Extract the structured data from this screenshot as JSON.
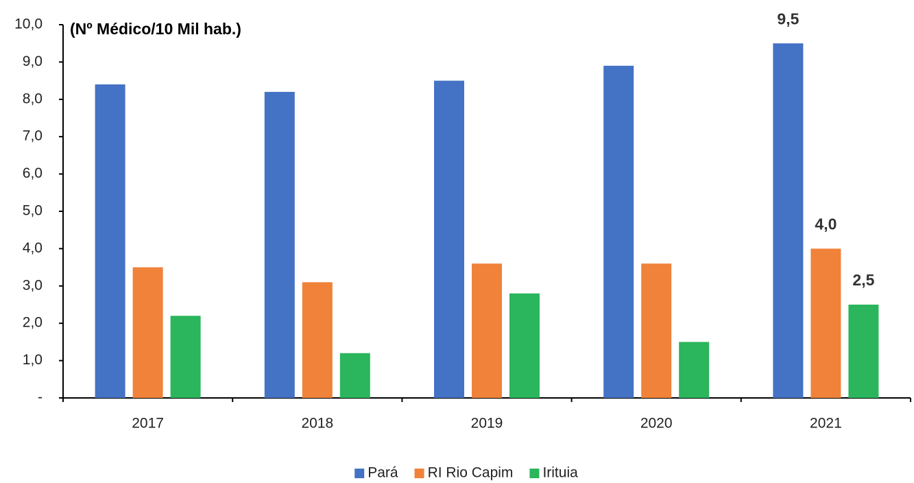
{
  "chart_data": {
    "type": "bar",
    "y_label": "(Nº Médico/10 Mil hab.)",
    "categories": [
      "2017",
      "2018",
      "2019",
      "2020",
      "2021"
    ],
    "series": [
      {
        "name": "Pará",
        "color": "#4472c4",
        "values": [
          8.4,
          8.2,
          8.5,
          8.9,
          9.5
        ],
        "value_labels": [
          null,
          null,
          null,
          null,
          "9,5"
        ]
      },
      {
        "name": "RI Rio Capim",
        "color": "#f0823a",
        "values": [
          3.5,
          3.1,
          3.6,
          3.6,
          4.0
        ],
        "value_labels": [
          null,
          null,
          null,
          null,
          "4,0"
        ]
      },
      {
        "name": "Irituia",
        "color": "#2bb55c",
        "values": [
          2.2,
          1.2,
          2.8,
          1.5,
          2.5
        ],
        "value_labels": [
          null,
          null,
          null,
          null,
          "2,5"
        ]
      }
    ],
    "ylim": [
      0,
      10
    ],
    "yticks": [
      {
        "value": 0,
        "label": "-"
      },
      {
        "value": 1,
        "label": "1,0"
      },
      {
        "value": 2,
        "label": "2,0"
      },
      {
        "value": 3,
        "label": "3,0"
      },
      {
        "value": 4,
        "label": "4,0"
      },
      {
        "value": 5,
        "label": "5,0"
      },
      {
        "value": 6,
        "label": "6,0"
      },
      {
        "value": 7,
        "label": "7,0"
      },
      {
        "value": 8,
        "label": "8,0"
      },
      {
        "value": 9,
        "label": "9,0"
      },
      {
        "value": 10,
        "label": "10,0"
      }
    ],
    "legend": "bottom"
  }
}
